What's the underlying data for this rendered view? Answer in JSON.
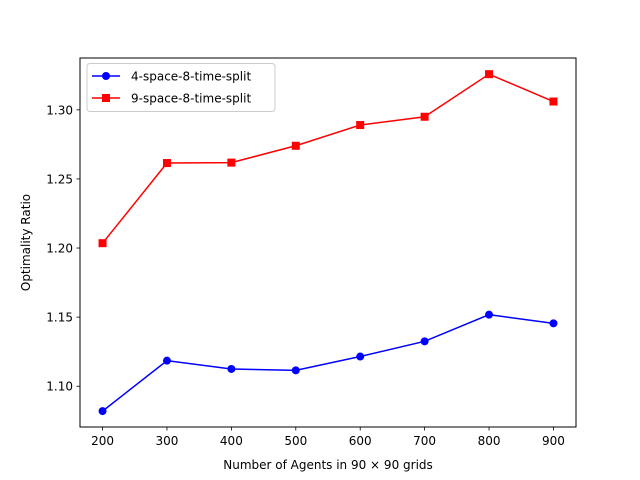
{
  "chart_data": {
    "type": "line",
    "x": [
      200,
      300,
      400,
      500,
      600,
      700,
      800,
      900
    ],
    "series": [
      {
        "name": "4-space-8-time-split",
        "values": [
          1.082,
          1.1185,
          1.1125,
          1.1115,
          1.1215,
          1.1325,
          1.1518,
          1.1455
        ],
        "color": "#0000ff",
        "marker": "circle"
      },
      {
        "name": "9-space-8-time-split",
        "values": [
          1.2035,
          1.2615,
          1.2618,
          1.274,
          1.289,
          1.295,
          1.3258,
          1.306
        ],
        "color": "#ff0000",
        "marker": "square"
      }
    ],
    "xlabel": "Number of Agents in 90 × 90 grids",
    "ylabel": "Optimality Ratio",
    "xlim": [
      165,
      935
    ],
    "ylim": [
      1.0705,
      1.3375
    ],
    "xticks": [
      200,
      300,
      400,
      500,
      600,
      700,
      800,
      900
    ],
    "yticks": [
      1.1,
      1.15,
      1.2,
      1.25,
      1.3
    ],
    "ytick_labels": [
      "1.10",
      "1.15",
      "1.20",
      "1.25",
      "1.30"
    ],
    "grid": false,
    "legend_position": "top-left"
  }
}
